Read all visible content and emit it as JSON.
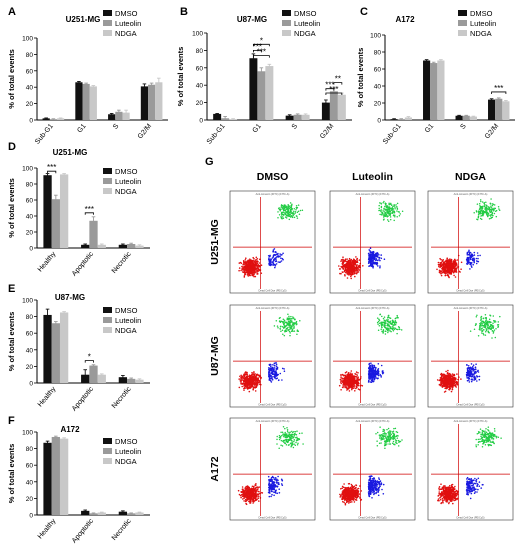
{
  "colors": {
    "dmso": "#111111",
    "luteolin": "#9a9a9a",
    "ndga": "#c8c8c8",
    "red": "#e01010",
    "blue": "#1a1ae0",
    "green": "#22cc44",
    "gate": "#d00000"
  },
  "panel_labels": [
    "A",
    "B",
    "C",
    "D",
    "E",
    "F",
    "G"
  ],
  "flow": {
    "columns": [
      "DMSO",
      "Luteolin",
      "NDGA"
    ],
    "rows": [
      "U251-MG",
      "U87-MG",
      "A172"
    ],
    "ylabel": "Anti-Annexin (FITC) (FITC-A)",
    "xlabel": "Dead Cell Dye (PE/Cy5)"
  },
  "chart_data": [
    {
      "panel": "A",
      "type": "bar",
      "title": "U251-MG",
      "ylabel": "% of total events",
      "ylim": [
        0,
        100
      ],
      "yticks": [
        0,
        20,
        40,
        60,
        80,
        100
      ],
      "categories": [
        "Sub-G1",
        "G1",
        "S",
        "G2/M"
      ],
      "series": [
        {
          "name": "DMSO",
          "values": [
            2,
            46,
            7,
            41
          ],
          "err": [
            0.5,
            1,
            1,
            3
          ]
        },
        {
          "name": "Luteolin",
          "values": [
            1,
            44,
            10,
            43
          ],
          "err": [
            0.5,
            1,
            2,
            2
          ]
        },
        {
          "name": "NDGA",
          "values": [
            2,
            41,
            9,
            46
          ],
          "err": [
            0.5,
            1,
            3,
            5
          ]
        }
      ],
      "legend": "top-right",
      "significance": []
    },
    {
      "panel": "B",
      "type": "bar",
      "title": "U87-MG",
      "ylabel": "% of total events",
      "ylim": [
        0,
        100
      ],
      "yticks": [
        0,
        20,
        40,
        60,
        80,
        100
      ],
      "categories": [
        "Sub-G1",
        "G1",
        "S",
        "G2/M"
      ],
      "series": [
        {
          "name": "DMSO",
          "values": [
            7,
            71,
            5,
            20
          ],
          "err": [
            0.5,
            5,
            1,
            3
          ]
        },
        {
          "name": "Luteolin",
          "values": [
            2,
            56,
            6,
            33
          ],
          "err": [
            2,
            4,
            1,
            3
          ]
        },
        {
          "name": "NDGA",
          "values": [
            1,
            62,
            6,
            29
          ],
          "err": [
            0.5,
            2,
            1,
            2
          ]
        }
      ],
      "legend": "top-right",
      "significance": [
        {
          "label": "*",
          "cat": 1,
          "from": 0,
          "to": 2,
          "y": 87
        },
        {
          "label": "***",
          "cat": 1,
          "from": 0,
          "to": 1,
          "y": 80
        },
        {
          "label": "***",
          "cat": 1,
          "from": 0,
          "to": 2,
          "y": 74
        },
        {
          "label": "**",
          "cat": 3,
          "from": 1,
          "to": 2,
          "y": 43
        },
        {
          "label": "***",
          "cat": 3,
          "from": 0,
          "to": 1,
          "y": 36
        },
        {
          "label": "***",
          "cat": 3,
          "from": 0,
          "to": 2,
          "y": 31
        }
      ]
    },
    {
      "panel": "C",
      "type": "bar",
      "title": "A172",
      "ylabel": "% of total events",
      "ylim": [
        0,
        100
      ],
      "yticks": [
        0,
        20,
        40,
        60,
        80,
        100
      ],
      "categories": [
        "Sub-G1",
        "G1",
        "S",
        "G2/M"
      ],
      "series": [
        {
          "name": "DMSO",
          "values": [
            1,
            70,
            5,
            24
          ],
          "err": [
            0.5,
            1,
            0.5,
            1
          ]
        },
        {
          "name": "Luteolin",
          "values": [
            1,
            67,
            5,
            25
          ],
          "err": [
            0.5,
            1,
            0.5,
            1
          ]
        },
        {
          "name": "NDGA",
          "values": [
            3,
            70,
            4,
            22
          ],
          "err": [
            1,
            1,
            0.5,
            1
          ]
        }
      ],
      "legend": "top-right",
      "significance": [
        {
          "label": "***",
          "cat": 3,
          "from": 0,
          "to": 2,
          "y": 33
        }
      ]
    },
    {
      "panel": "D",
      "type": "bar",
      "title": "U251-MG",
      "ylabel": "% of total events",
      "ylim": [
        0,
        100
      ],
      "yticks": [
        0,
        20,
        40,
        60,
        80,
        100
      ],
      "categories": [
        "Healthy",
        "Apoptotic",
        "Necrotic"
      ],
      "series": [
        {
          "name": "DMSO",
          "values": [
            91,
            4,
            4
          ],
          "err": [
            2,
            1,
            1
          ]
        },
        {
          "name": "Luteolin",
          "values": [
            61,
            34,
            5
          ],
          "err": [
            5,
            5,
            1
          ]
        },
        {
          "name": "NDGA",
          "values": [
            92,
            4,
            3
          ],
          "err": [
            1,
            1,
            1
          ]
        }
      ],
      "legend": "top-right",
      "significance": [
        {
          "label": "***",
          "cat": 0,
          "from": 0,
          "to": 1,
          "y": 96
        },
        {
          "label": "***",
          "cat": 1,
          "from": 0,
          "to": 1,
          "y": 44
        }
      ]
    },
    {
      "panel": "E",
      "type": "bar",
      "title": "U87-MG",
      "ylabel": "% of total events",
      "ylim": [
        0,
        100
      ],
      "yticks": [
        0,
        20,
        40,
        60,
        80,
        100
      ],
      "categories": [
        "Healthy",
        "Apoptotic",
        "Necrotic"
      ],
      "series": [
        {
          "name": "DMSO",
          "values": [
            82,
            10,
            7
          ],
          "err": [
            7,
            6,
            2
          ]
        },
        {
          "name": "Luteolin",
          "values": [
            72,
            21,
            5
          ],
          "err": [
            2,
            1,
            1
          ]
        },
        {
          "name": "NDGA",
          "values": [
            85,
            10,
            4
          ],
          "err": [
            1,
            1,
            1
          ]
        }
      ],
      "legend": "top-right",
      "significance": [
        {
          "label": "*",
          "cat": 1,
          "from": 0,
          "to": 1,
          "y": 27
        }
      ]
    },
    {
      "panel": "F",
      "type": "bar",
      "title": "A172",
      "ylabel": "% of total events",
      "ylim": [
        0,
        100
      ],
      "yticks": [
        0,
        20,
        40,
        60,
        80,
        100
      ],
      "categories": [
        "Healthy",
        "Apoptotic",
        "Necrotic"
      ],
      "series": [
        {
          "name": "DMSO",
          "values": [
            87,
            5,
            4
          ],
          "err": [
            2,
            1,
            1
          ]
        },
        {
          "name": "Luteolin",
          "values": [
            94,
            2,
            2
          ],
          "err": [
            1,
            0.5,
            0.5
          ]
        },
        {
          "name": "NDGA",
          "values": [
            92,
            3,
            3
          ],
          "err": [
            1,
            0.5,
            0.5
          ]
        }
      ],
      "legend": "top-right",
      "significance": []
    }
  ]
}
